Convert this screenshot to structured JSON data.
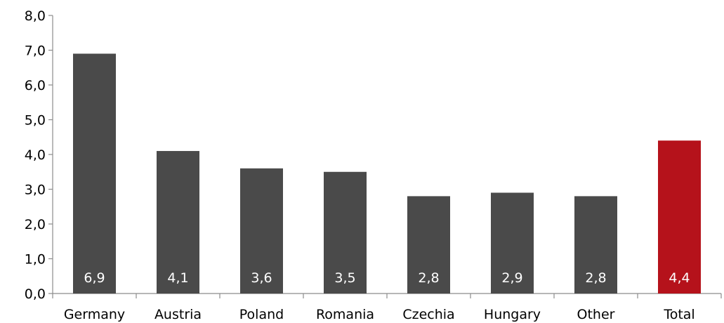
{
  "chart_data": {
    "type": "bar",
    "categories": [
      "Germany",
      "Austria",
      "Poland",
      "Romania",
      "Czechia",
      "Hungary",
      "Other",
      "Total"
    ],
    "values": [
      6.9,
      4.1,
      3.6,
      3.5,
      2.8,
      2.9,
      2.8,
      4.4
    ],
    "value_labels": [
      "6,9",
      "4,1",
      "3,6",
      "3,5",
      "2,8",
      "2,9",
      "2,8",
      "4,4"
    ],
    "y_ticks": [
      0,
      1,
      2,
      3,
      4,
      5,
      6,
      7,
      8
    ],
    "y_tick_labels": [
      "0,0",
      "1,0",
      "2,0",
      "3,0",
      "4,0",
      "5,0",
      "6,0",
      "7,0",
      "8,0"
    ],
    "ylim": [
      0,
      8
    ],
    "grid": false,
    "legend": "none",
    "colors": {
      "bar": "#4a4a4a",
      "highlight": "#b5121b",
      "axis": "#8c8c8c"
    },
    "highlight_category": "Total"
  }
}
